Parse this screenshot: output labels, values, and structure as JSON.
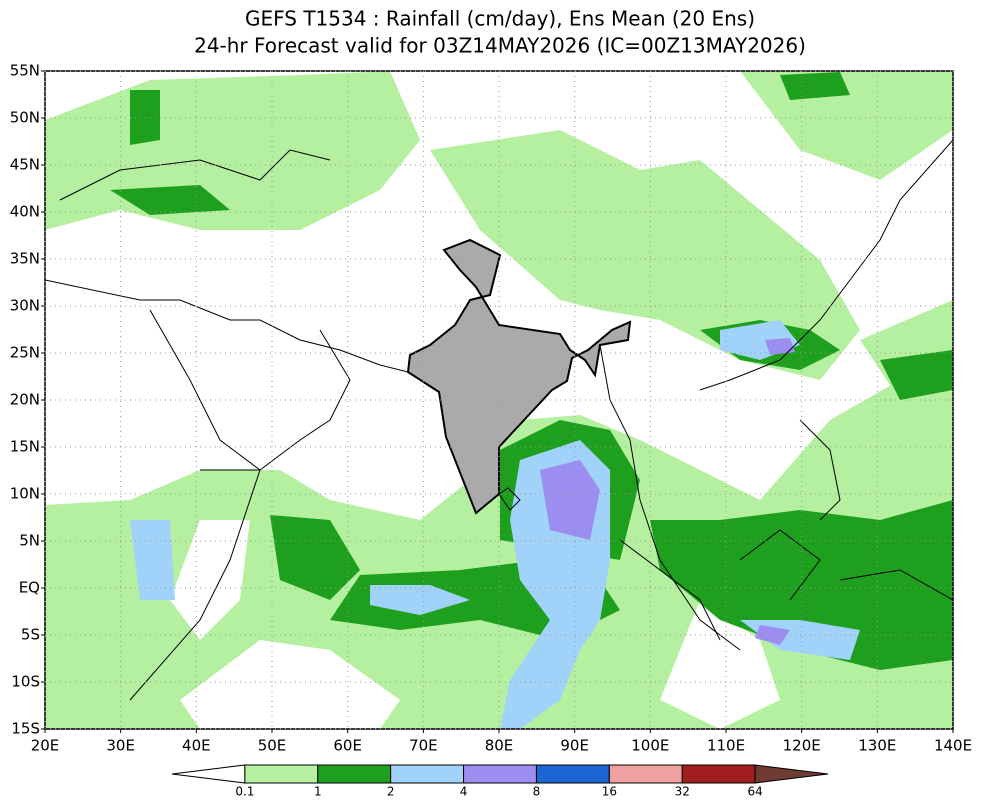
{
  "map": {
    "title": [
      "GEFS T1534 : Rainfall (cm/day), Ens Mean (20 Ens)",
      "24-hr Forecast valid for 03Z14MAY2026 (IC=00Z13MAY2026)"
    ],
    "xlim": [
      20,
      140
    ],
    "ylim": [
      -15,
      55
    ],
    "xticks": [
      {
        "value": 20,
        "label": "20E"
      },
      {
        "value": 30,
        "label": "30E"
      },
      {
        "value": 40,
        "label": "40E"
      },
      {
        "value": 50,
        "label": "50E"
      },
      {
        "value": 60,
        "label": "60E"
      },
      {
        "value": 70,
        "label": "70E"
      },
      {
        "value": 80,
        "label": "80E"
      },
      {
        "value": 90,
        "label": "90E"
      },
      {
        "value": 100,
        "label": "100E"
      },
      {
        "value": 110,
        "label": "110E"
      },
      {
        "value": 120,
        "label": "120E"
      },
      {
        "value": 130,
        "label": "130E"
      },
      {
        "value": 140,
        "label": "140E"
      }
    ],
    "yticks": [
      {
        "value": 55,
        "label": "55N"
      },
      {
        "value": 50,
        "label": "50N"
      },
      {
        "value": 45,
        "label": "45N"
      },
      {
        "value": 40,
        "label": "40N"
      },
      {
        "value": 35,
        "label": "35N"
      },
      {
        "value": 30,
        "label": "30N"
      },
      {
        "value": 25,
        "label": "25N"
      },
      {
        "value": 20,
        "label": "20N"
      },
      {
        "value": 15,
        "label": "15N"
      },
      {
        "value": 10,
        "label": "10N"
      },
      {
        "value": 5,
        "label": "5N"
      },
      {
        "value": 0,
        "label": "EQ"
      },
      {
        "value": -5,
        "label": "5S"
      },
      {
        "value": -10,
        "label": "10S"
      },
      {
        "value": -15,
        "label": "15S"
      }
    ],
    "grid": true,
    "colorbar": {
      "levels": [
        0.1,
        1,
        2,
        4,
        8,
        16,
        32,
        64
      ],
      "colors": [
        "#ffffff",
        "#b4f0a0",
        "#1ea01e",
        "#a0d2fa",
        "#9b8ef0",
        "#1e64d2",
        "#f0a0a0",
        "#a01e1e",
        "#6e3c32"
      ]
    }
  }
}
